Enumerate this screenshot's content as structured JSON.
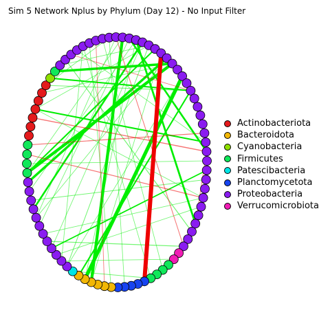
{
  "title": "Sim 5 Network Nplus by Phylum (Day 12) - No Input Filter",
  "legend": [
    {
      "label": "Actinobacteriota",
      "color": "#e41a1c"
    },
    {
      "label": "Bacteroidota",
      "color": "#f2b705"
    },
    {
      "label": "Cyanobacteria",
      "color": "#8fe000"
    },
    {
      "label": "Firmicutes",
      "color": "#10e85a"
    },
    {
      "label": "Patescibacteria",
      "color": "#00e5e5"
    },
    {
      "label": "Planctomycetota",
      "color": "#1744f0"
    },
    {
      "label": "Proteobacteria",
      "color": "#8a1cf0"
    },
    {
      "label": "Verrucomicrobiota",
      "color": "#f01cb4"
    }
  ],
  "node_colors": {
    "Actinobacteriota": "#e41a1c",
    "Bacteroidota": "#f2b705",
    "Cyanobacteria": "#8fe000",
    "Firmicutes": "#10e85a",
    "Patescibacteria": "#00e5e5",
    "Planctomycetota": "#1744f0",
    "Proteobacteria": "#8a1cf0",
    "Verrucomicrobiota": "#f01cb4"
  },
  "edge_colors": {
    "positive": "#00ee00",
    "negative": "#ee0000"
  }
}
